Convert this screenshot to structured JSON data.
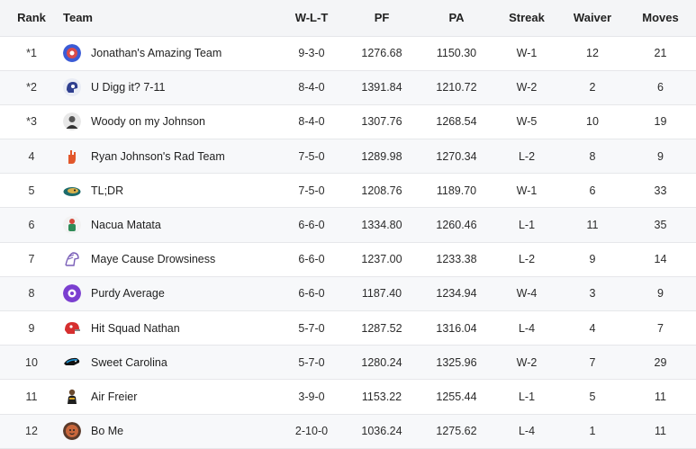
{
  "headers": {
    "rank": "Rank",
    "team": "Team",
    "wlt": "W-L-T",
    "pf": "PF",
    "pa": "PA",
    "streak": "Streak",
    "waiver": "Waiver",
    "moves": "Moves"
  },
  "rows": [
    {
      "rank": "*1",
      "team": "Jonathan's Amazing Team",
      "wlt": "9-3-0",
      "pf": "1276.68",
      "pa": "1150.30",
      "streak": "W-1",
      "waiver": "12",
      "moves": "21",
      "logo_icon": "ball-icon",
      "logo_color": "#3b5bd6"
    },
    {
      "rank": "*2",
      "team": "U Digg it? 7-11",
      "wlt": "8-4-0",
      "pf": "1391.84",
      "pa": "1210.72",
      "streak": "W-2",
      "waiver": "2",
      "moves": "6",
      "logo_icon": "helmet-icon",
      "logo_color": "#2f3f8f"
    },
    {
      "rank": "*3",
      "team": "Woody on my Johnson",
      "wlt": "8-4-0",
      "pf": "1307.76",
      "pa": "1268.54",
      "streak": "W-5",
      "waiver": "10",
      "moves": "19",
      "logo_icon": "person-icon",
      "logo_color": "#555555"
    },
    {
      "rank": "4",
      "team": "Ryan Johnson's Rad Team",
      "wlt": "7-5-0",
      "pf": "1289.98",
      "pa": "1270.34",
      "streak": "L-2",
      "waiver": "8",
      "moves": "9",
      "logo_icon": "hand-icon",
      "logo_color": "#e2572b"
    },
    {
      "rank": "5",
      "team": "TL;DR",
      "wlt": "7-5-0",
      "pf": "1208.76",
      "pa": "1189.70",
      "streak": "W-1",
      "waiver": "6",
      "moves": "33",
      "logo_icon": "jaguar-icon",
      "logo_color": "#1c6b6b"
    },
    {
      "rank": "6",
      "team": "Nacua Matata",
      "wlt": "6-6-0",
      "pf": "1334.80",
      "pa": "1260.46",
      "streak": "L-1",
      "waiver": "11",
      "moves": "35",
      "logo_icon": "player-icon",
      "logo_color": "#d4483a"
    },
    {
      "rank": "7",
      "team": "Maye Cause Drowsiness",
      "wlt": "6-6-0",
      "pf": "1237.00",
      "pa": "1233.38",
      "streak": "L-2",
      "waiver": "9",
      "moves": "14",
      "logo_icon": "horse-icon",
      "logo_color": "#7a5fb8"
    },
    {
      "rank": "8",
      "team": "Purdy Average",
      "wlt": "6-6-0",
      "pf": "1187.40",
      "pa": "1234.94",
      "streak": "W-4",
      "waiver": "3",
      "moves": "9",
      "logo_icon": "badge-icon",
      "logo_color": "#7b3fd0"
    },
    {
      "rank": "9",
      "team": "Hit Squad Nathan",
      "wlt": "5-7-0",
      "pf": "1287.52",
      "pa": "1316.04",
      "streak": "L-4",
      "waiver": "4",
      "moves": "7",
      "logo_icon": "helmet-red-icon",
      "logo_color": "#d62f2f"
    },
    {
      "rank": "10",
      "team": "Sweet Carolina",
      "wlt": "5-7-0",
      "pf": "1280.24",
      "pa": "1325.96",
      "streak": "W-2",
      "waiver": "7",
      "moves": "29",
      "logo_icon": "panther-icon",
      "logo_color": "#1a8fd0"
    },
    {
      "rank": "11",
      "team": "Air Freier",
      "wlt": "3-9-0",
      "pf": "1153.22",
      "pa": "1255.44",
      "streak": "L-1",
      "waiver": "5",
      "moves": "11",
      "logo_icon": "athlete-icon",
      "logo_color": "#d9a425"
    },
    {
      "rank": "12",
      "team": "Bo Me",
      "wlt": "2-10-0",
      "pf": "1036.24",
      "pa": "1275.62",
      "streak": "L-4",
      "waiver": "1",
      "moves": "11",
      "logo_icon": "face-icon",
      "logo_color": "#c8663b"
    }
  ]
}
